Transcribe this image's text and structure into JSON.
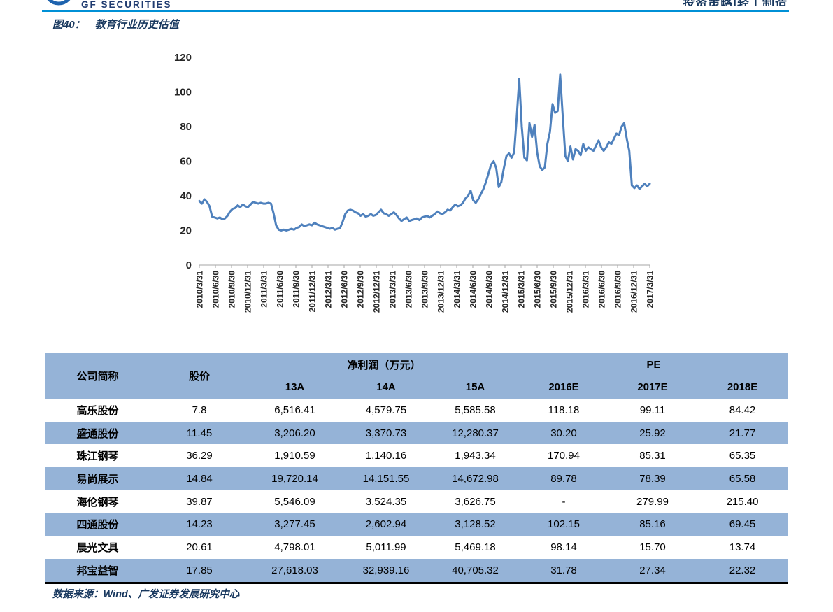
{
  "header": {
    "brand": "GF SECURITIES",
    "category": "投资策略|轻工制造",
    "rule_color": "#0090D6"
  },
  "figure": {
    "label": "图40：",
    "title": "教育行业历史估值"
  },
  "chart_data": {
    "type": "line",
    "title": "教育行业历史估值",
    "xlabel": "",
    "ylabel": "",
    "ylim": [
      0,
      120
    ],
    "y_ticks": [
      0,
      20,
      40,
      60,
      80,
      100,
      120
    ],
    "grid": false,
    "legend": "none",
    "line_color": "#4F81BD",
    "x_labels": [
      "2010/3/31",
      "2010/6/30",
      "2010/9/30",
      "2010/12/31",
      "2011/3/31",
      "2011/6/30",
      "2011/9/30",
      "2011/12/31",
      "2012/3/31",
      "2012/6/30",
      "2012/9/30",
      "2012/12/31",
      "2013/3/31",
      "2013/6/30",
      "2013/9/30",
      "2013/12/31",
      "2014/3/31",
      "2014/6/30",
      "2014/9/30",
      "2014/12/31",
      "2015/3/31",
      "2015/6/30",
      "2015/9/30",
      "2015/12/31",
      "2016/3/31",
      "2016/6/30",
      "2016/9/30",
      "2016/12/31",
      "2017/3/31"
    ],
    "values": [
      37,
      35.5,
      38,
      36.5,
      34,
      28,
      27.5,
      27,
      27.5,
      26.5,
      27,
      28.5,
      31,
      32.5,
      33,
      34.5,
      33.5,
      35,
      34,
      33.5,
      35,
      36.5,
      36,
      35.5,
      36,
      35.5,
      35.5,
      36,
      35.5,
      30,
      23,
      20.5,
      20,
      20.5,
      20,
      20.5,
      21,
      20.5,
      21.5,
      22,
      23.5,
      22.5,
      23,
      23.5,
      23,
      24.5,
      23.5,
      23,
      22.5,
      22,
      21.5,
      21,
      21.5,
      20.5,
      21,
      21.5,
      25,
      29.5,
      31.5,
      32,
      31.5,
      30.5,
      30,
      28.5,
      29.5,
      28,
      28.5,
      29.5,
      28.5,
      29,
      30.5,
      32,
      30,
      29.5,
      28.5,
      29.5,
      30.5,
      29,
      27,
      25.5,
      26.5,
      27.5,
      25.5,
      26,
      26.5,
      27,
      26,
      27.5,
      28,
      28.5,
      27.5,
      28.5,
      29.5,
      31,
      30,
      29.5,
      30.5,
      32,
      31.5,
      33.5,
      35,
      34,
      34.5,
      36,
      38.5,
      40,
      43,
      37.5,
      36,
      38,
      41,
      44,
      48,
      53,
      58,
      60,
      56,
      45,
      48,
      56,
      63,
      64.5,
      62,
      65,
      85,
      107.5,
      80,
      62,
      60.5,
      82,
      74,
      81,
      65,
      57,
      55,
      56.5,
      70,
      77,
      93,
      88,
      89,
      110,
      86,
      63,
      60,
      68.5,
      61,
      67,
      66,
      63.5,
      70,
      66,
      68,
      67,
      66,
      69,
      72,
      68,
      66,
      68,
      71,
      70,
      73,
      76,
      75,
      80,
      82,
      73,
      66,
      46,
      44.5,
      46,
      44,
      45.5,
      47,
      45.5,
      47
    ]
  },
  "table": {
    "stripe_color": "#95B3D7",
    "group_headers": {
      "company": "公司简称",
      "price": "股价",
      "profit": "净利润（万元）",
      "pe": "PE"
    },
    "sub_headers": [
      "13A",
      "14A",
      "15A",
      "2016E",
      "2017E",
      "2018E"
    ],
    "rows": [
      {
        "cells": [
          "高乐股份",
          "7.8",
          "6,516.41",
          "4,579.75",
          "5,585.58",
          "118.18",
          "99.11",
          "84.42"
        ]
      },
      {
        "cells": [
          "盛通股份",
          "11.45",
          "3,206.20",
          "3,370.73",
          "12,280.37",
          "30.20",
          "25.92",
          "21.77"
        ]
      },
      {
        "cells": [
          "珠江钢琴",
          "36.29",
          "1,910.59",
          "1,140.16",
          "1,943.34",
          "170.94",
          "85.31",
          "65.35"
        ]
      },
      {
        "cells": [
          "易尚展示",
          "14.84",
          "19,720.14",
          "14,151.55",
          "14,672.98",
          "89.78",
          "78.39",
          "65.58"
        ]
      },
      {
        "cells": [
          "海伦钢琴",
          "39.87",
          "5,546.09",
          "3,524.35",
          "3,626.75",
          "-",
          "279.99",
          "215.40"
        ]
      },
      {
        "cells": [
          "四通股份",
          "14.23",
          "3,277.45",
          "2,602.94",
          "3,128.52",
          "102.15",
          "85.16",
          "69.45"
        ]
      },
      {
        "cells": [
          "晨光文具",
          "20.61",
          "4,798.01",
          "5,011.99",
          "5,469.18",
          "98.14",
          "15.70",
          "13.74"
        ]
      },
      {
        "cells": [
          "邦宝益智",
          "17.85",
          "27,618.03",
          "32,939.16",
          "40,705.32",
          "31.78",
          "27.34",
          "22.32"
        ]
      }
    ]
  },
  "footer": {
    "source": "数据来源：Wind、广发证券发展研究中心"
  }
}
